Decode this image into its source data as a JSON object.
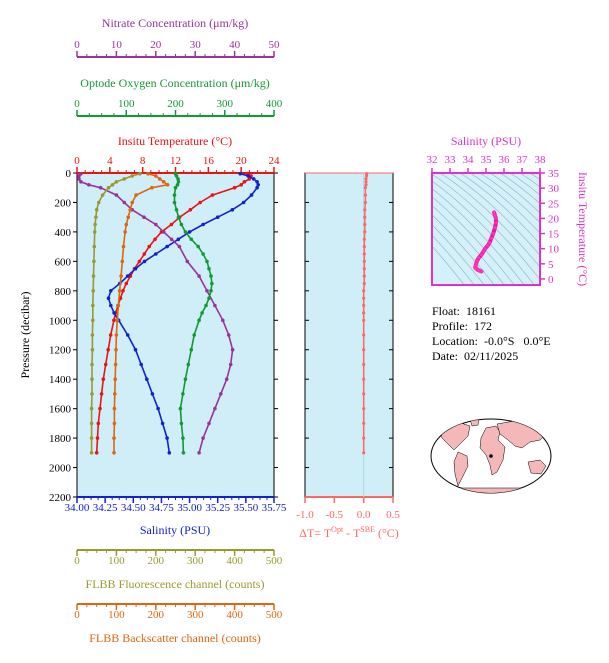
{
  "float_info": {
    "float_label": "Float:",
    "float_id": "18161",
    "profile_label": "Profile:",
    "profile_id": "172",
    "location_label": "Location:",
    "location_value": "-0.0°S   0.0°E",
    "date_label": "Date:",
    "date_value": "02/11/2025"
  },
  "colors": {
    "nitrate": "#993399",
    "oxygen": "#119933",
    "temperature": "#ee1111",
    "salinity": "#1122cc",
    "fluorescence": "#999933",
    "backscatter": "#dd6611",
    "delta_t": "#ff6666",
    "plot_bg": "#d0eef8",
    "ts_bg": "#d4f0f8",
    "ts_axes": "#dd33cc",
    "land": "#f4b8b8"
  },
  "chart_data": [
    {
      "type": "line",
      "title": "",
      "ylabel": "Pressure (decibar)",
      "ylim": [
        2200,
        0
      ],
      "yticks": [
        "0",
        "200",
        "400",
        "600",
        "800",
        "1000",
        "1200",
        "1400",
        "1600",
        "1800",
        "2000",
        "2200"
      ],
      "axes": {
        "nitrate": {
          "label": "Nitrate Concentration (μm/kg)",
          "range": [
            0,
            50
          ],
          "ticks": [
            "0",
            "10",
            "20",
            "30",
            "40",
            "50"
          ],
          "position": "top"
        },
        "oxygen": {
          "label": "Optode Oxygen Concentration (μm/kg)",
          "range": [
            0,
            400
          ],
          "ticks": [
            "0",
            "100",
            "200",
            "300",
            "400"
          ],
          "position": "top"
        },
        "temperature": {
          "label": "Insitu Temperature (°C)",
          "range": [
            0,
            24
          ],
          "ticks": [
            "0",
            "4",
            "8",
            "12",
            "16",
            "20",
            "24"
          ],
          "position": "top"
        },
        "salinity": {
          "label": "Salinity (PSU)",
          "range": [
            34.0,
            35.75
          ],
          "ticks": [
            "34.00",
            "34.25",
            "34.50",
            "34.75",
            "35.00",
            "35.25",
            "35.50",
            "35.75"
          ],
          "position": "bottom"
        },
        "fluorescence": {
          "label": "FLBB Fluorescence channel (counts)",
          "range": [
            0,
            500
          ],
          "ticks": [
            "0",
            "100",
            "200",
            "300",
            "400",
            "500"
          ],
          "position": "bottom"
        },
        "backscatter": {
          "label": "FLBB Backscatter channel (counts)",
          "range": [
            0,
            500
          ],
          "ticks": [
            "0",
            "100",
            "200",
            "300",
            "400",
            "500"
          ],
          "position": "bottom"
        }
      },
      "series": [
        {
          "key": "temperature",
          "p": [
            5,
            20,
            40,
            60,
            80,
            100,
            150,
            200,
            250,
            300,
            350,
            400,
            450,
            500,
            550,
            600,
            650,
            700,
            750,
            800,
            850,
            900,
            950,
            1000,
            1100,
            1200,
            1300,
            1400,
            1500,
            1600,
            1700,
            1800,
            1900
          ],
          "values": [
            20.8,
            21.2,
            21.0,
            20.4,
            20.0,
            19.2,
            16.5,
            15.0,
            13.8,
            12.5,
            11.5,
            10.3,
            9.5,
            8.8,
            8.2,
            7.6,
            7.0,
            6.5,
            6.0,
            5.6,
            5.3,
            5.0,
            4.7,
            4.5,
            4.1,
            3.8,
            3.5,
            3.2,
            3.0,
            2.8,
            2.6,
            2.5,
            2.4
          ]
        },
        {
          "key": "salinity",
          "p": [
            5,
            20,
            40,
            60,
            80,
            100,
            150,
            200,
            250,
            300,
            350,
            400,
            450,
            500,
            550,
            600,
            650,
            700,
            750,
            800,
            850,
            900,
            950,
            1000,
            1100,
            1200,
            1300,
            1400,
            1500,
            1600,
            1700,
            1800,
            1900
          ],
          "values": [
            35.45,
            35.52,
            35.57,
            35.6,
            35.61,
            35.6,
            35.55,
            35.48,
            35.38,
            35.25,
            35.12,
            35.0,
            34.9,
            34.8,
            34.7,
            34.6,
            34.52,
            34.45,
            34.38,
            34.3,
            34.28,
            34.3,
            34.33,
            34.37,
            34.45,
            34.52,
            34.57,
            34.62,
            34.67,
            34.72,
            34.76,
            34.8,
            34.82
          ]
        },
        {
          "key": "nitrate",
          "p": [
            5,
            20,
            40,
            60,
            80,
            100,
            150,
            200,
            250,
            300,
            350,
            400,
            450,
            500,
            600,
            700,
            800,
            900,
            1000,
            1100,
            1200,
            1300,
            1400,
            1500,
            1600,
            1700,
            1800,
            1900
          ],
          "values": [
            1,
            0.5,
            0.5,
            1,
            3,
            6,
            10,
            12,
            14,
            17,
            20,
            22,
            24,
            26,
            28,
            31,
            33,
            35,
            37,
            38.5,
            39.5,
            39,
            38,
            36.5,
            35,
            33.5,
            32,
            31
          ]
        },
        {
          "key": "oxygen",
          "p": [
            5,
            20,
            40,
            60,
            80,
            100,
            150,
            200,
            250,
            300,
            350,
            400,
            450,
            500,
            550,
            600,
            650,
            700,
            750,
            800,
            850,
            900,
            950,
            1000,
            1100,
            1200,
            1300,
            1400,
            1500,
            1600,
            1700,
            1800,
            1900
          ],
          "values": [
            200,
            202,
            205,
            206,
            204,
            200,
            198,
            198,
            202,
            206,
            212,
            220,
            232,
            246,
            256,
            264,
            268,
            272,
            274,
            272,
            268,
            262,
            254,
            248,
            238,
            232,
            226,
            220,
            215,
            210,
            212,
            215,
            216
          ]
        },
        {
          "key": "fluorescence",
          "p": [
            5,
            20,
            40,
            60,
            80,
            100,
            150,
            200,
            250,
            300,
            350,
            400,
            500,
            600,
            700,
            800,
            900,
            1000,
            1100,
            1200,
            1300,
            1400,
            1500,
            1600,
            1700,
            1800,
            1900
          ],
          "values": [
            160,
            140,
            120,
            100,
            90,
            80,
            65,
            55,
            50,
            48,
            46,
            45,
            44,
            43,
            42,
            41,
            40,
            40,
            39,
            39,
            38,
            38,
            38,
            37,
            37,
            37,
            37
          ]
        },
        {
          "key": "backscatter",
          "p": [
            5,
            20,
            40,
            60,
            80,
            100,
            150,
            200,
            250,
            300,
            350,
            400,
            500,
            600,
            700,
            800,
            900,
            1000,
            1100,
            1200,
            1300,
            1400,
            1500,
            1600,
            1700,
            1800,
            1900
          ],
          "values": [
            180,
            200,
            210,
            220,
            230,
            190,
            150,
            140,
            135,
            130,
            125,
            122,
            118,
            115,
            112,
            108,
            105,
            102,
            100,
            99,
            98,
            97,
            96,
            95,
            95,
            94,
            94
          ]
        }
      ]
    },
    {
      "type": "line",
      "title": "",
      "xlabel": "ΔT= T^Opt - T^SBE (°C)",
      "xlim": [
        -1.0,
        0.5
      ],
      "xticks": [
        "-1.0",
        "-0.5",
        "0.0",
        "0.5"
      ],
      "ylim": [
        2200,
        0
      ],
      "series": [
        {
          "key": "delta_t",
          "p": [
            5,
            20,
            40,
            60,
            80,
            100,
            150,
            200,
            250,
            300,
            350,
            400,
            450,
            500,
            550,
            600,
            650,
            700,
            750,
            800,
            850,
            900,
            950,
            1000,
            1100,
            1200,
            1300,
            1400,
            1500,
            1600,
            1700,
            1800,
            1900
          ],
          "values": [
            0.05,
            0.05,
            0.04,
            0.04,
            0.04,
            0.03,
            0.03,
            0.03,
            0.02,
            0.02,
            0.02,
            0.02,
            0.01,
            0.01,
            0.01,
            0.01,
            0.01,
            0.01,
            0.01,
            0.0,
            0.0,
            0.0,
            0.0,
            0.0,
            0.0,
            0.0,
            0.0,
            0.0,
            0.0,
            0.0,
            0.0,
            0.0,
            0.0
          ]
        }
      ]
    },
    {
      "type": "scatter",
      "title": "",
      "xlabel": "Salinity (PSU)",
      "ylabel": "Insitu Temperature (°C)",
      "xlim": [
        32,
        38
      ],
      "ylim": [
        -2,
        35
      ],
      "xticks": [
        "32",
        "33",
        "34",
        "35",
        "36",
        "37",
        "38"
      ],
      "yticks": [
        "0",
        "5",
        "10",
        "15",
        "20",
        "25",
        "30",
        "35"
      ],
      "series": [
        {
          "key": "ts",
          "x": [
            35.45,
            35.5,
            35.55,
            35.55,
            35.5,
            35.4,
            35.3,
            35.2,
            35.1,
            34.95,
            34.85,
            34.75,
            34.6,
            34.5,
            34.45,
            34.42,
            34.4,
            34.45,
            34.55,
            34.65,
            34.75
          ],
          "y": [
            22.0,
            21.0,
            20.0,
            18.5,
            17.0,
            15.0,
            13.5,
            12.0,
            11.0,
            10.0,
            9.0,
            8.0,
            7.0,
            6.0,
            5.0,
            4.3,
            3.8,
            3.5,
            3.0,
            2.7,
            2.5
          ]
        }
      ]
    }
  ]
}
